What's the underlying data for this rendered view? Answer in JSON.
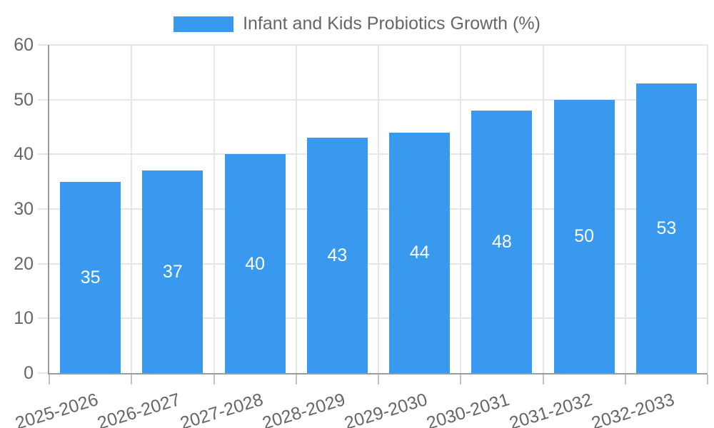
{
  "colors": {
    "bar": "#3899ee",
    "grid": "#e6e6e6",
    "axis": "#9b9b9b",
    "x_tick_mark": "#c2c2c2",
    "tick_text": "#666666",
    "legend_text": "#666666",
    "value_label": "#ffffff",
    "background": "#ffffff"
  },
  "chart_data": {
    "type": "bar",
    "title": "Infant and Kids Probiotics Growth (%)",
    "legend": {
      "position": "top",
      "entries": [
        "Infant and Kids Probiotics Growth (%)"
      ]
    },
    "categories": [
      "2025-2026",
      "2026-2027",
      "2027-2028",
      "2028-2029",
      "2029-2030",
      "2030-2031",
      "2031-2032",
      "2032-2033"
    ],
    "values": [
      35,
      37,
      40,
      43,
      44,
      48,
      50,
      53
    ],
    "xlabel": "",
    "ylabel": "",
    "ylim": [
      0,
      60
    ],
    "yticks": [
      0,
      10,
      20,
      30,
      40,
      50,
      60
    ],
    "grid": true,
    "bar_labels_inside": true,
    "x_label_rotation_deg": -17
  }
}
